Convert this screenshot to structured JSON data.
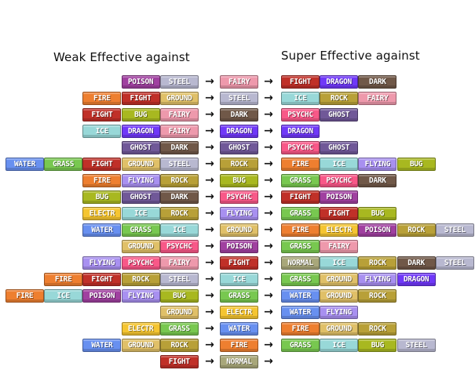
{
  "headings": {
    "weak": "Weak Effective against",
    "super": "Super Effective against"
  },
  "arrow_glyph": "→",
  "type_colors": {
    "NORMAL": "#a8a77a",
    "FIRE": "#ee7f30",
    "WATER": "#6890f0",
    "GRASS": "#78c850",
    "ELECTR": "#f5c531",
    "ICE": "#98d8d8",
    "FIGHT": "#c03028",
    "POISON": "#a040a0",
    "GROUND": "#e0c068",
    "FLYING": "#a890f0",
    "PSYCHC": "#f85888",
    "BUG": "#a8b820",
    "ROCK": "#b8a038",
    "GHOST": "#705898",
    "DRAGON": "#7038f8",
    "DARK": "#705848",
    "STEEL": "#b8b8d0",
    "FAIRY": "#ee99ac"
  },
  "rows": [
    {
      "weak": [
        "POISON",
        "STEEL"
      ],
      "type": "FAIRY",
      "super": [
        "FIGHT",
        "DRAGON",
        "DARK"
      ]
    },
    {
      "weak": [
        "FIRE",
        "FIGHT",
        "GROUND"
      ],
      "type": "STEEL",
      "super": [
        "ICE",
        "ROCK",
        "FAIRY"
      ]
    },
    {
      "weak": [
        "FIGHT",
        "BUG",
        "FAIRY"
      ],
      "type": "DARK",
      "super": [
        "PSYCHC",
        "GHOST"
      ]
    },
    {
      "weak": [
        "ICE",
        "DRAGON",
        "FAIRY"
      ],
      "type": "DRAGON",
      "super": [
        "DRAGON"
      ]
    },
    {
      "weak": [
        "GHOST",
        "DARK"
      ],
      "type": "GHOST",
      "super": [
        "PSYCHC",
        "GHOST"
      ]
    },
    {
      "weak": [
        "WATER",
        "GRASS",
        "FIGHT",
        "GROUND",
        "STEEL"
      ],
      "type": "ROCK",
      "super": [
        "FIRE",
        "ICE",
        "FLYING",
        "BUG"
      ]
    },
    {
      "weak": [
        "FIRE",
        "FLYING",
        "ROCK"
      ],
      "type": "BUG",
      "super": [
        "GRASS",
        "PSYCHC",
        "DARK"
      ]
    },
    {
      "weak": [
        "BUG",
        "GHOST",
        "DARK"
      ],
      "type": "PSYCHC",
      "super": [
        "FIGHT",
        "POISON"
      ]
    },
    {
      "weak": [
        "ELECTR",
        "ICE",
        "ROCK"
      ],
      "type": "FLYING",
      "super": [
        "GRASS",
        "FIGHT",
        "BUG"
      ]
    },
    {
      "weak": [
        "WATER",
        "GRASS",
        "ICE"
      ],
      "type": "GROUND",
      "super": [
        "FIRE",
        "ELECTR",
        "POISON",
        "ROCK",
        "STEEL"
      ]
    },
    {
      "weak": [
        "GROUND",
        "PSYCHC"
      ],
      "type": "POISON",
      "super": [
        "GRASS",
        "FAIRY"
      ]
    },
    {
      "weak": [
        "FLYING",
        "PSYCHC",
        "FAIRY"
      ],
      "type": "FIGHT",
      "super": [
        "NORMAL",
        "ICE",
        "ROCK",
        "DARK",
        "STEEL"
      ]
    },
    {
      "weak": [
        "FIRE",
        "FIGHT",
        "ROCK",
        "STEEL"
      ],
      "type": "ICE",
      "super": [
        "GRASS",
        "GROUND",
        "FLYING",
        "DRAGON"
      ]
    },
    {
      "weak": [
        "FIRE",
        "ICE",
        "POISON",
        "FLYING",
        "BUG"
      ],
      "type": "GRASS",
      "super": [
        "WATER",
        "GROUND",
        "ROCK"
      ]
    },
    {
      "weak": [
        "GROUND"
      ],
      "type": "ELECTR",
      "super": [
        "WATER",
        "FLYING"
      ]
    },
    {
      "weak": [
        "ELECTR",
        "GRASS"
      ],
      "type": "WATER",
      "super": [
        "FIRE",
        "GROUND",
        "ROCK"
      ]
    },
    {
      "weak": [
        "WATER",
        "GROUND",
        "ROCK"
      ],
      "type": "FIRE",
      "super": [
        "GRASS",
        "ICE",
        "BUG",
        "STEEL"
      ]
    },
    {
      "weak": [
        "FIGHT"
      ],
      "type": "NORMAL",
      "super": []
    }
  ]
}
